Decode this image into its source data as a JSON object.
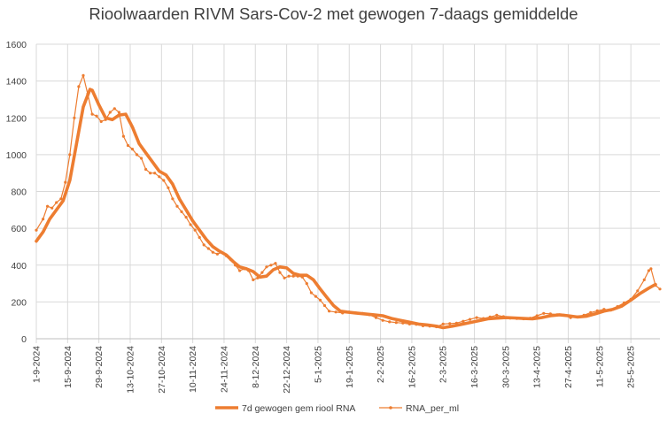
{
  "chart_data": {
    "type": "line",
    "title": "Rioolwaarden RIVM Sars-Cov-2 met gewogen 7-daags gemiddelde",
    "xlabel": "",
    "ylabel": "",
    "ylim": [
      0,
      1600
    ],
    "yticks": [
      0,
      200,
      400,
      600,
      800,
      1000,
      1200,
      1400,
      1600
    ],
    "xlim": [
      "2024-09-01",
      "2025-06-07"
    ],
    "x_tick_labels": [
      "1-9-2024",
      "15-9-2024",
      "29-9-2024",
      "13-10-2024",
      "27-10-2024",
      "10-11-2024",
      "24-11-2024",
      "8-12-2024",
      "22-12-2024",
      "5-1-2025",
      "19-1-2025",
      "2-2-2025",
      "16-2-2025",
      "2-3-2025",
      "16-3-2025",
      "30-3-2025",
      "13-4-2025",
      "27-4-2025",
      "11-5-2025",
      "25-5-2025"
    ],
    "grid": true,
    "legend_position": "bottom",
    "colors": {
      "smooth": "#ED7D31",
      "raw": "#ED7D31",
      "grid": "#D9D9D9",
      "text": "#404040"
    },
    "series": [
      {
        "name": "7d gewogen gem riool RNA",
        "style": "thick-line",
        "points": [
          [
            "2024-09-01",
            530
          ],
          [
            "2024-09-04",
            580
          ],
          [
            "2024-09-07",
            650
          ],
          [
            "2024-09-10",
            700
          ],
          [
            "2024-09-13",
            750
          ],
          [
            "2024-09-16",
            860
          ],
          [
            "2024-09-19",
            1060
          ],
          [
            "2024-09-22",
            1260
          ],
          [
            "2024-09-25",
            1355
          ],
          [
            "2024-09-26",
            1350
          ],
          [
            "2024-09-29",
            1270
          ],
          [
            "2024-10-02",
            1200
          ],
          [
            "2024-10-05",
            1190
          ],
          [
            "2024-10-08",
            1215
          ],
          [
            "2024-10-11",
            1220
          ],
          [
            "2024-10-14",
            1150
          ],
          [
            "2024-10-17",
            1060
          ],
          [
            "2024-10-20",
            1010
          ],
          [
            "2024-10-23",
            960
          ],
          [
            "2024-10-26",
            910
          ],
          [
            "2024-10-29",
            890
          ],
          [
            "2024-11-01",
            840
          ],
          [
            "2024-11-04",
            760
          ],
          [
            "2024-11-07",
            700
          ],
          [
            "2024-11-10",
            640
          ],
          [
            "2024-11-13",
            590
          ],
          [
            "2024-11-16",
            540
          ],
          [
            "2024-11-19",
            500
          ],
          [
            "2024-11-22",
            475
          ],
          [
            "2024-11-25",
            455
          ],
          [
            "2024-11-28",
            420
          ],
          [
            "2024-12-01",
            390
          ],
          [
            "2024-12-04",
            380
          ],
          [
            "2024-12-07",
            365
          ],
          [
            "2024-12-10",
            335
          ],
          [
            "2024-12-13",
            340
          ],
          [
            "2024-12-16",
            375
          ],
          [
            "2024-12-19",
            390
          ],
          [
            "2024-12-22",
            385
          ],
          [
            "2024-12-25",
            355
          ],
          [
            "2024-12-28",
            345
          ],
          [
            "2024-12-31",
            345
          ],
          [
            "2025-01-03",
            320
          ],
          [
            "2025-01-06",
            270
          ],
          [
            "2025-01-09",
            225
          ],
          [
            "2025-01-12",
            180
          ],
          [
            "2025-01-15",
            150
          ],
          [
            "2025-01-18",
            145
          ],
          [
            "2025-01-22",
            140
          ],
          [
            "2025-01-26",
            135
          ],
          [
            "2025-01-30",
            130
          ],
          [
            "2025-02-03",
            125
          ],
          [
            "2025-02-07",
            110
          ],
          [
            "2025-02-11",
            100
          ],
          [
            "2025-02-15",
            90
          ],
          [
            "2025-02-19",
            80
          ],
          [
            "2025-02-23",
            75
          ],
          [
            "2025-02-27",
            68
          ],
          [
            "2025-03-02",
            60
          ],
          [
            "2025-03-06",
            68
          ],
          [
            "2025-03-10",
            78
          ],
          [
            "2025-03-14",
            88
          ],
          [
            "2025-03-18",
            98
          ],
          [
            "2025-03-22",
            108
          ],
          [
            "2025-03-26",
            112
          ],
          [
            "2025-03-30",
            115
          ],
          [
            "2025-04-03",
            113
          ],
          [
            "2025-04-07",
            110
          ],
          [
            "2025-04-11",
            108
          ],
          [
            "2025-04-15",
            115
          ],
          [
            "2025-04-19",
            125
          ],
          [
            "2025-04-23",
            130
          ],
          [
            "2025-04-27",
            125
          ],
          [
            "2025-05-01",
            118
          ],
          [
            "2025-05-05",
            122
          ],
          [
            "2025-05-09",
            135
          ],
          [
            "2025-05-13",
            150
          ],
          [
            "2025-05-17",
            160
          ],
          [
            "2025-05-21",
            178
          ],
          [
            "2025-05-25",
            210
          ],
          [
            "2025-05-29",
            245
          ],
          [
            "2025-06-02",
            275
          ],
          [
            "2025-06-05",
            295
          ]
        ]
      },
      {
        "name": "RNA_per_ml",
        "style": "thin-line-with-markers",
        "points": [
          [
            "2024-09-01",
            590
          ],
          [
            "2024-09-04",
            650
          ],
          [
            "2024-09-06",
            720
          ],
          [
            "2024-09-08",
            710
          ],
          [
            "2024-09-10",
            740
          ],
          [
            "2024-09-12",
            760
          ],
          [
            "2024-09-14",
            850
          ],
          [
            "2024-09-16",
            1000
          ],
          [
            "2024-09-18",
            1200
          ],
          [
            "2024-09-20",
            1370
          ],
          [
            "2024-09-22",
            1430
          ],
          [
            "2024-09-24",
            1330
          ],
          [
            "2024-09-26",
            1220
          ],
          [
            "2024-09-28",
            1210
          ],
          [
            "2024-09-30",
            1180
          ],
          [
            "2024-10-02",
            1190
          ],
          [
            "2024-10-04",
            1230
          ],
          [
            "2024-10-06",
            1250
          ],
          [
            "2024-10-08",
            1230
          ],
          [
            "2024-10-10",
            1100
          ],
          [
            "2024-10-12",
            1050
          ],
          [
            "2024-10-14",
            1030
          ],
          [
            "2024-10-16",
            1000
          ],
          [
            "2024-10-18",
            980
          ],
          [
            "2024-10-20",
            920
          ],
          [
            "2024-10-22",
            900
          ],
          [
            "2024-10-24",
            900
          ],
          [
            "2024-10-26",
            880
          ],
          [
            "2024-10-28",
            860
          ],
          [
            "2024-10-30",
            820
          ],
          [
            "2024-11-01",
            760
          ],
          [
            "2024-11-03",
            720
          ],
          [
            "2024-11-05",
            690
          ],
          [
            "2024-11-07",
            660
          ],
          [
            "2024-11-09",
            620
          ],
          [
            "2024-11-11",
            590
          ],
          [
            "2024-11-13",
            550
          ],
          [
            "2024-11-15",
            510
          ],
          [
            "2024-11-17",
            490
          ],
          [
            "2024-11-19",
            470
          ],
          [
            "2024-11-21",
            460
          ],
          [
            "2024-11-23",
            470
          ],
          [
            "2024-11-25",
            450
          ],
          [
            "2024-11-27",
            430
          ],
          [
            "2024-11-29",
            400
          ],
          [
            "2024-12-01",
            370
          ],
          [
            "2024-12-03",
            380
          ],
          [
            "2024-12-05",
            370
          ],
          [
            "2024-12-07",
            320
          ],
          [
            "2024-12-09",
            330
          ],
          [
            "2024-12-11",
            360
          ],
          [
            "2024-12-13",
            390
          ],
          [
            "2024-12-15",
            400
          ],
          [
            "2024-12-17",
            410
          ],
          [
            "2024-12-19",
            360
          ],
          [
            "2024-12-21",
            330
          ],
          [
            "2024-12-23",
            340
          ],
          [
            "2024-12-25",
            340
          ],
          [
            "2024-12-27",
            340
          ],
          [
            "2024-12-29",
            335
          ],
          [
            "2024-12-31",
            300
          ],
          [
            "2025-01-02",
            250
          ],
          [
            "2025-01-04",
            230
          ],
          [
            "2025-01-06",
            210
          ],
          [
            "2025-01-08",
            180
          ],
          [
            "2025-01-10",
            150
          ],
          [
            "2025-01-13",
            145
          ],
          [
            "2025-01-16",
            140
          ],
          [
            "2025-01-19",
            145
          ],
          [
            "2025-01-22",
            140
          ],
          [
            "2025-01-25",
            138
          ],
          [
            "2025-01-28",
            130
          ],
          [
            "2025-01-31",
            115
          ],
          [
            "2025-02-03",
            100
          ],
          [
            "2025-02-06",
            92
          ],
          [
            "2025-02-09",
            88
          ],
          [
            "2025-02-12",
            85
          ],
          [
            "2025-02-15",
            80
          ],
          [
            "2025-02-18",
            78
          ],
          [
            "2025-02-21",
            70
          ],
          [
            "2025-02-24",
            68
          ],
          [
            "2025-02-27",
            65
          ],
          [
            "2025-03-02",
            80
          ],
          [
            "2025-03-05",
            82
          ],
          [
            "2025-03-08",
            85
          ],
          [
            "2025-03-11",
            95
          ],
          [
            "2025-03-14",
            105
          ],
          [
            "2025-03-17",
            115
          ],
          [
            "2025-03-20",
            110
          ],
          [
            "2025-03-23",
            118
          ],
          [
            "2025-03-26",
            128
          ],
          [
            "2025-03-29",
            120
          ],
          [
            "2025-04-01",
            112
          ],
          [
            "2025-04-04",
            110
          ],
          [
            "2025-04-07",
            108
          ],
          [
            "2025-04-10",
            112
          ],
          [
            "2025-04-13",
            125
          ],
          [
            "2025-04-16",
            138
          ],
          [
            "2025-04-19",
            135
          ],
          [
            "2025-04-22",
            130
          ],
          [
            "2025-04-25",
            128
          ],
          [
            "2025-04-28",
            115
          ],
          [
            "2025-05-01",
            118
          ],
          [
            "2025-05-04",
            128
          ],
          [
            "2025-05-07",
            142
          ],
          [
            "2025-05-10",
            152
          ],
          [
            "2025-05-13",
            160
          ],
          [
            "2025-05-16",
            155
          ],
          [
            "2025-05-19",
            175
          ],
          [
            "2025-05-22",
            195
          ],
          [
            "2025-05-25",
            215
          ],
          [
            "2025-05-28",
            260
          ],
          [
            "2025-05-31",
            320
          ],
          [
            "2025-06-02",
            370
          ],
          [
            "2025-06-03",
            380
          ],
          [
            "2025-06-05",
            290
          ],
          [
            "2025-06-07",
            270
          ]
        ]
      }
    ]
  }
}
